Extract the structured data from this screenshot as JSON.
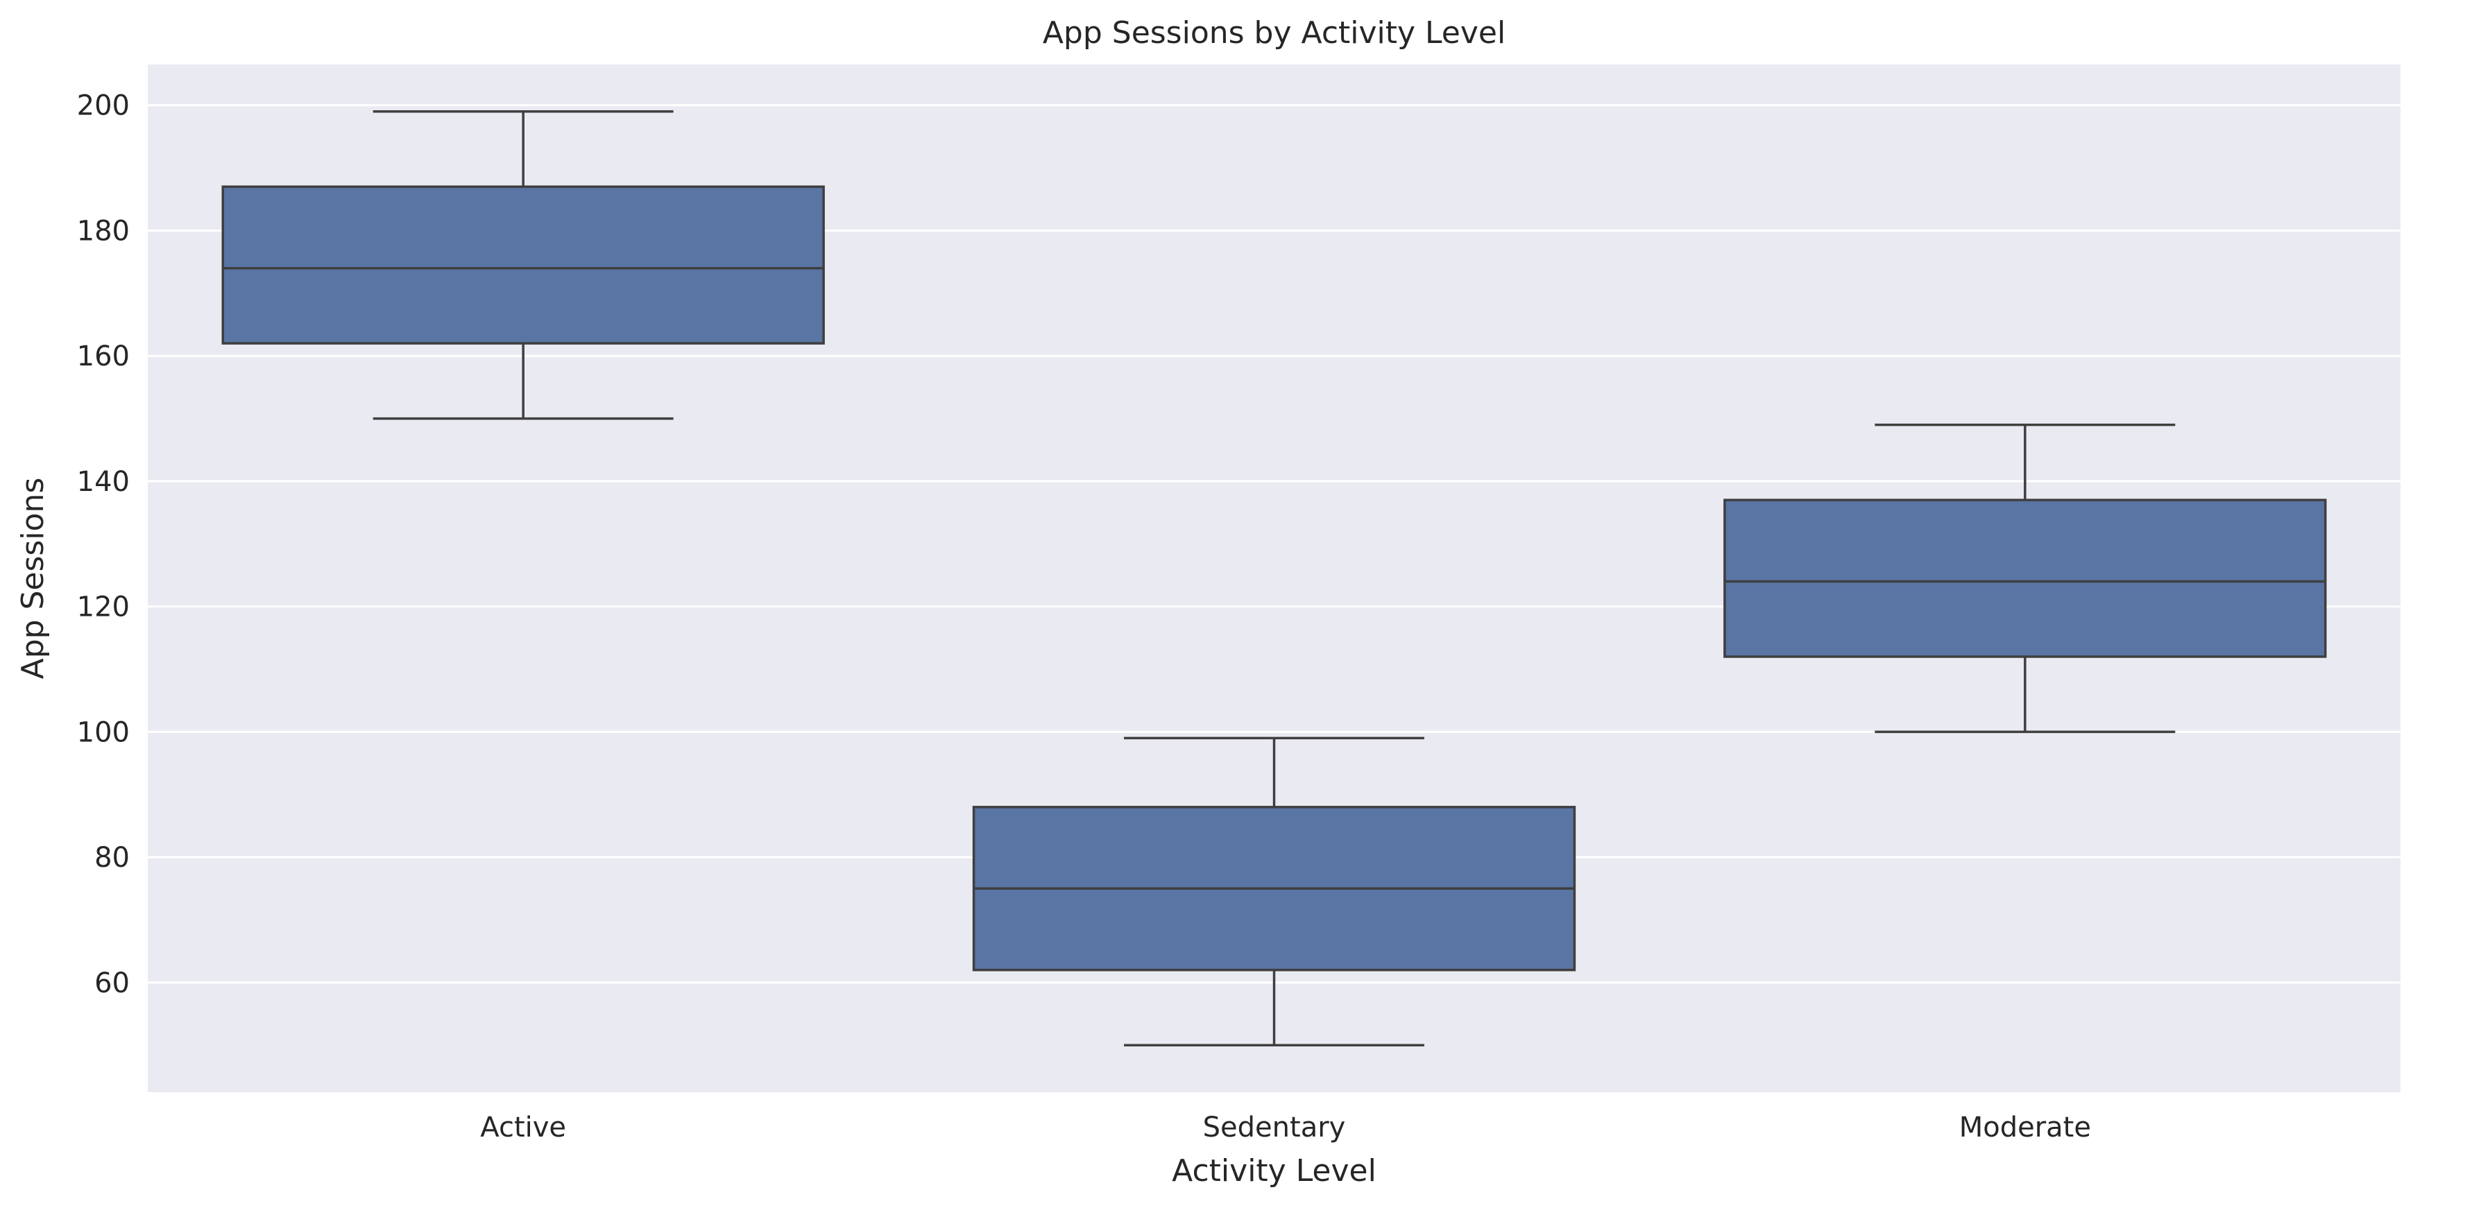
{
  "chart_data": {
    "type": "box",
    "title": "App Sessions by Activity Level",
    "xlabel": "Activity Level",
    "ylabel": "App Sessions",
    "categories": [
      "Active",
      "Sedentary",
      "Moderate"
    ],
    "boxes": [
      {
        "category": "Active",
        "whisker_low": 150,
        "q1": 162,
        "median": 174,
        "q3": 187,
        "whisker_high": 199
      },
      {
        "category": "Sedentary",
        "whisker_low": 50,
        "q1": 62,
        "median": 75,
        "q3": 88,
        "whisker_high": 99
      },
      {
        "category": "Moderate",
        "whisker_low": 100,
        "q1": 112,
        "median": 124,
        "q3": 137,
        "whisker_high": 149
      }
    ],
    "ylim": [
      42.5,
      206.5
    ],
    "yticks": [
      60,
      80,
      100,
      120,
      140,
      160,
      180,
      200
    ],
    "grid": true,
    "colors": {
      "background": "#eaeaf2",
      "grid": "#ffffff",
      "box_fill": "#5975a4",
      "box_edge": "#3f3f3f"
    }
  }
}
